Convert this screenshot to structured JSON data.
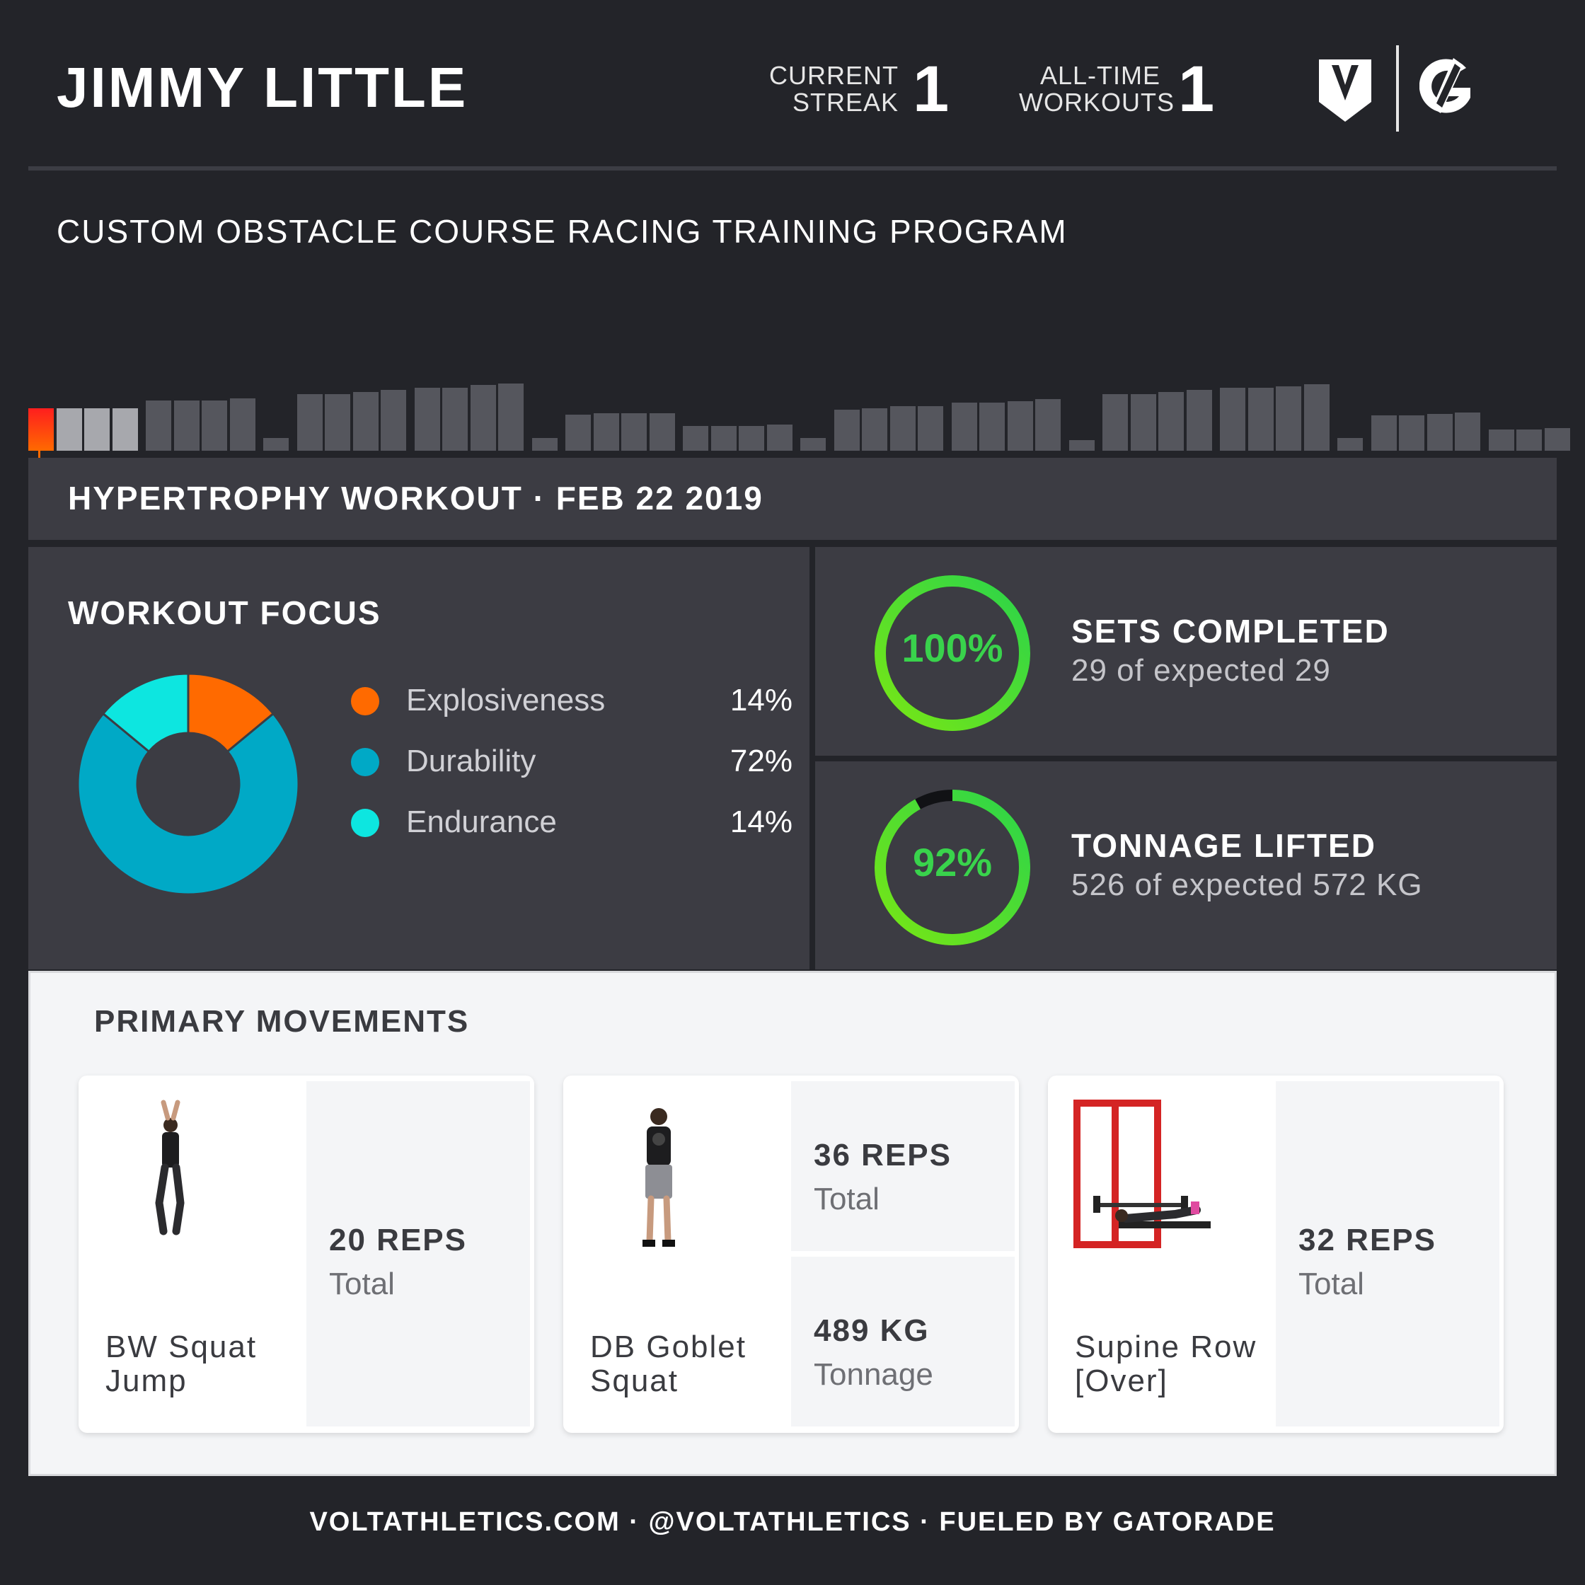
{
  "header": {
    "athlete_name": "JIMMY LITTLE",
    "current_streak_label_1": "CURRENT",
    "current_streak_label_2": "STREAK",
    "current_streak_value": "1",
    "all_time_label_1": "ALL-TIME",
    "all_time_label_2": "WORKOUTS",
    "all_time_value": "1",
    "logos": [
      "volt-shield-icon",
      "gatorade-g-icon"
    ]
  },
  "program_title": "CUSTOM OBSTACLE COURSE RACING TRAINING PROGRAM",
  "workout_header": "HYPERTROPHY WORKOUT · FEB 22 2019",
  "workout_focus": {
    "title": "WORKOUT FOCUS",
    "items": [
      {
        "label": "Explosiveness",
        "pct": "14%",
        "color": "#ff6a00"
      },
      {
        "label": "Durability",
        "pct": "72%",
        "color": "#00a9c6"
      },
      {
        "label": "Endurance",
        "pct": "14%",
        "color": "#0de6e0"
      }
    ]
  },
  "kpis": [
    {
      "pct_label": "100%",
      "value": 1.0,
      "title": "SETS COMPLETED",
      "sub": "29 of expected 29"
    },
    {
      "pct_label": "92%",
      "value": 0.92,
      "title": "TONNAGE LIFTED",
      "sub": "526 of expected 572 KG"
    }
  ],
  "primary_movements": {
    "title": "PRIMARY MOVEMENTS",
    "cards": [
      {
        "name_1": "BW Squat",
        "name_2": "Jump",
        "m1_val": "20 REPS",
        "m1_lbl": "Total"
      },
      {
        "name_1": "DB Goblet",
        "name_2": "Squat",
        "m1_val": "36 REPS",
        "m1_lbl": "Total",
        "m2_val": "489 KG",
        "m2_lbl": "Tonnage"
      },
      {
        "name_1": "Supine Row",
        "name_2": "[Over]",
        "m1_val": "32 REPS",
        "m1_lbl": "Total"
      }
    ]
  },
  "footer": "VOLTATHLETICS.COM · @VOLTATHLETICS · FUELED BY GATORADE",
  "colors": {
    "accent_green": "#39d34c",
    "timeline_current": "#ff2a1e",
    "bg": "#232429",
    "panel": "#3c3c43"
  }
}
